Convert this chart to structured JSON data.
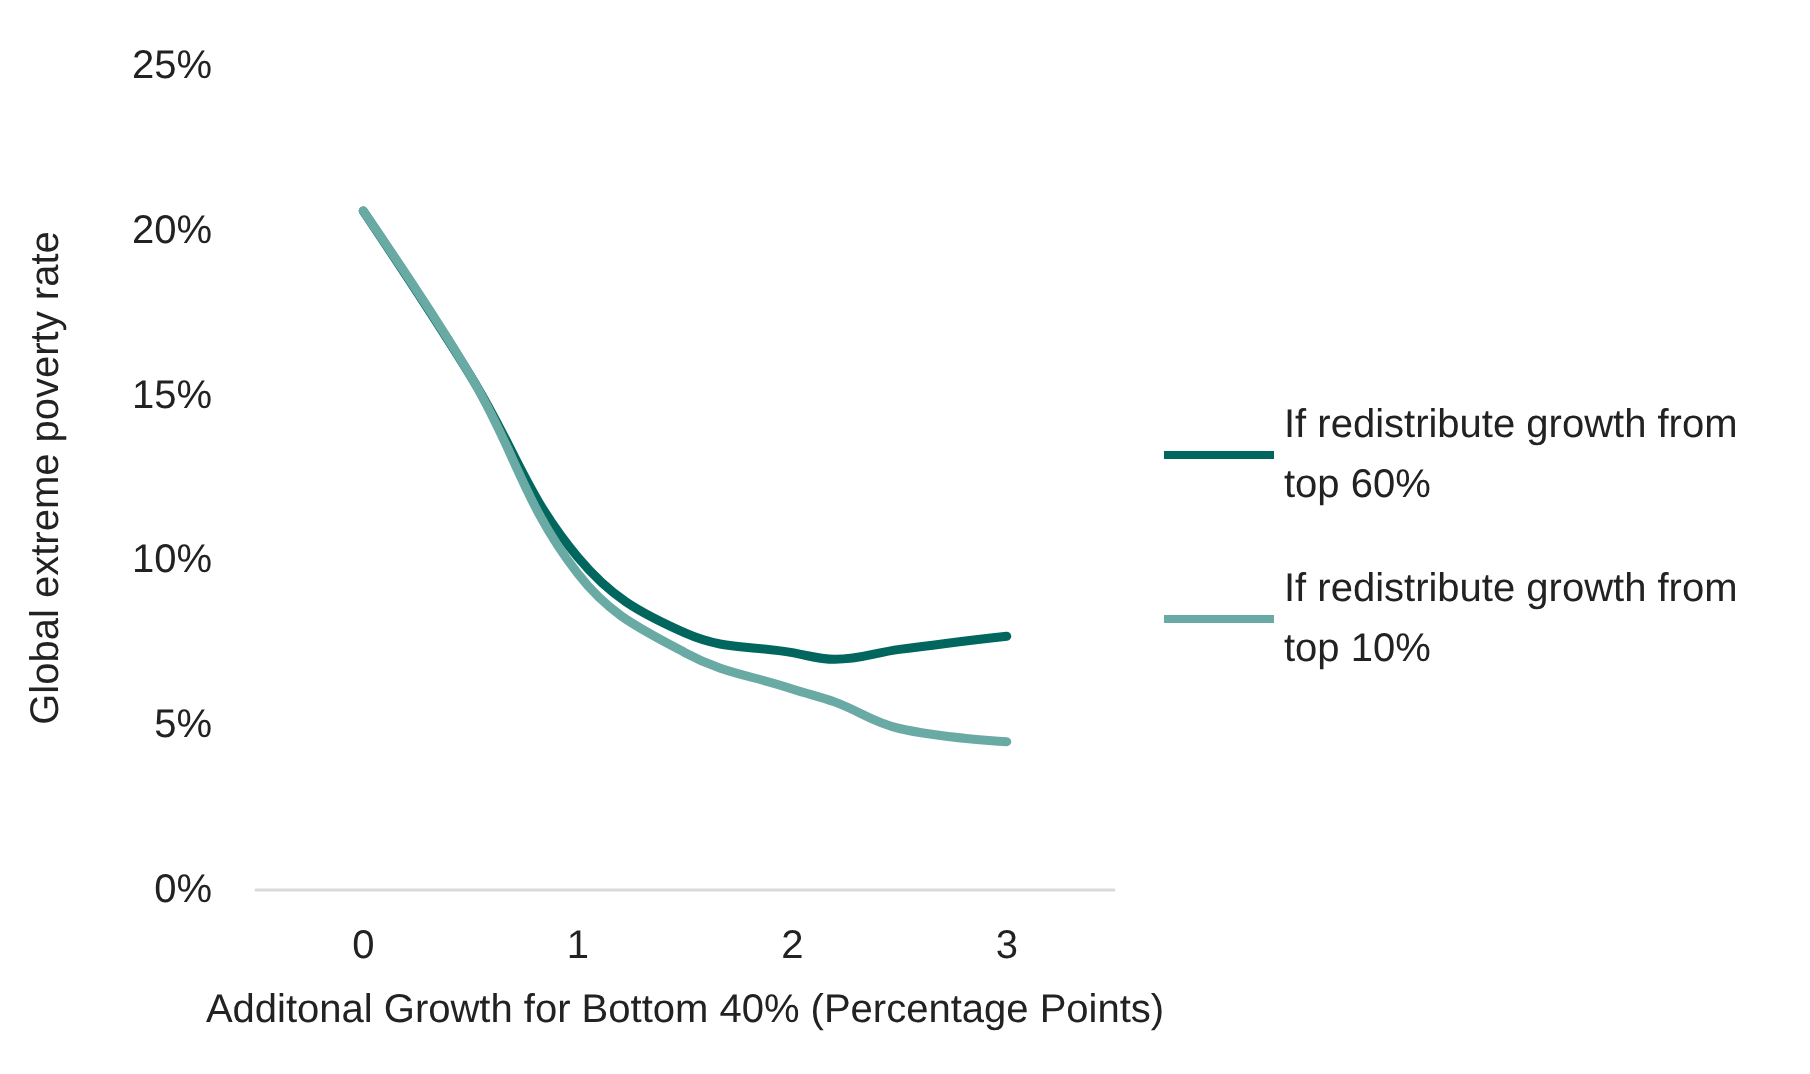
{
  "chart_data": {
    "type": "line",
    "xlabel": "Additonal Growth for Bottom 40% (Percentage Points)",
    "ylabel": "Global extreme poverty rate",
    "x": [
      0,
      0.5,
      1,
      1.5,
      2,
      2.2,
      2.5,
      3
    ],
    "series": [
      {
        "name": "If redistribute growth from top 60%",
        "color": "#00665e",
        "values": [
          20.6,
          15.6,
          10.1,
          7.8,
          7.2,
          7.0,
          7.3,
          7.7
        ]
      },
      {
        "name": "If redistribute growth from top 10%",
        "color": "#69aaa5",
        "values": [
          20.6,
          15.6,
          9.6,
          7.2,
          6.1,
          5.7,
          4.9,
          4.5
        ]
      }
    ],
    "xlim": [
      -0.5,
      3.5
    ],
    "xticks": [
      0,
      1,
      2,
      3
    ],
    "ylim": [
      0,
      25
    ],
    "yticks": [
      {
        "value": 0,
        "label": "0%"
      },
      {
        "value": 5,
        "label": "5%"
      },
      {
        "value": 10,
        "label": "10%"
      },
      {
        "value": 15,
        "label": "15%"
      },
      {
        "value": 20,
        "label": "20%"
      },
      {
        "value": 25,
        "label": "25%"
      }
    ],
    "grid": false,
    "legend": "right",
    "marker": "none",
    "line_style": "solid"
  }
}
